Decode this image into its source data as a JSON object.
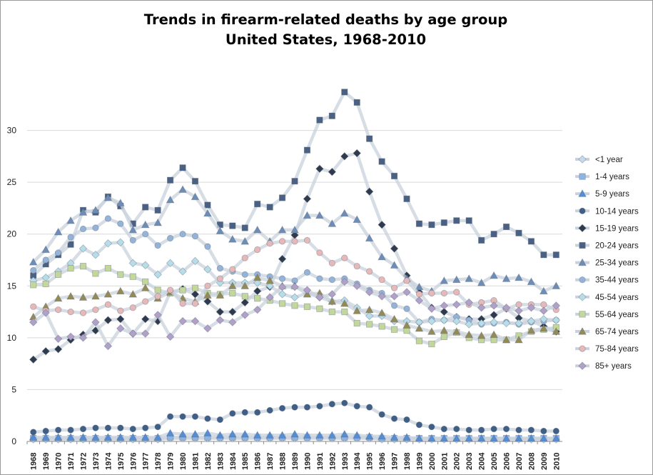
{
  "chart_data": {
    "type": "line",
    "title": "Trends in firearm-related deaths by age group",
    "subtitle": "United States, 1968-2010",
    "xlabel": "",
    "ylabel": "",
    "ylim": [
      0,
      35
    ],
    "y_ticks": [
      "0",
      "5",
      "10",
      "15",
      "20",
      "25",
      "30"
    ],
    "grid": "horizontal",
    "legend_position": "right",
    "x": [
      "1968",
      "1969",
      "1970",
      "1971",
      "1972",
      "1973",
      "1974",
      "1975",
      "1976",
      "1977",
      "1978",
      "1979",
      "1980",
      "1981",
      "1982",
      "1983",
      "1984",
      "1985",
      "1986",
      "1987",
      "1988",
      "1989",
      "1990",
      "1991",
      "1992",
      "1993",
      "1994",
      "1995",
      "1996",
      "1997",
      "1998",
      "1999",
      "2000",
      "2001",
      "2002",
      "2003",
      "2004",
      "2005",
      "2006",
      "2007",
      "2008",
      "2009",
      "2010"
    ],
    "series": [
      {
        "name": "<1 year",
        "color": "#c5d9f1",
        "marker": "diamond",
        "values": [
          0.2,
          0.2,
          0.2,
          0.2,
          0.2,
          0.2,
          0.2,
          0.2,
          0.2,
          0.2,
          0.2,
          0.3,
          0.3,
          0.3,
          0.3,
          0.3,
          0.3,
          0.3,
          0.3,
          0.3,
          0.3,
          0.3,
          0.3,
          0.3,
          0.3,
          0.3,
          0.3,
          0.3,
          0.2,
          0.2,
          0.2,
          0.2,
          0.2,
          0.2,
          0.2,
          0.2,
          0.2,
          0.2,
          0.2,
          0.2,
          0.2,
          0.2,
          0.2
        ]
      },
      {
        "name": "1-4 years",
        "color": "#8db4e2",
        "marker": "square",
        "values": [
          0.3,
          0.3,
          0.3,
          0.3,
          0.3,
          0.3,
          0.3,
          0.3,
          0.3,
          0.3,
          0.3,
          0.4,
          0.4,
          0.4,
          0.4,
          0.4,
          0.4,
          0.4,
          0.4,
          0.4,
          0.4,
          0.4,
          0.4,
          0.4,
          0.4,
          0.4,
          0.4,
          0.4,
          0.3,
          0.3,
          0.3,
          0.3,
          0.3,
          0.3,
          0.3,
          0.3,
          0.3,
          0.3,
          0.3,
          0.3,
          0.3,
          0.3,
          0.3
        ]
      },
      {
        "name": "5-9 years",
        "color": "#538dd5",
        "marker": "triangle",
        "values": [
          0.4,
          0.4,
          0.4,
          0.4,
          0.4,
          0.4,
          0.4,
          0.4,
          0.4,
          0.4,
          0.4,
          0.8,
          0.7,
          0.7,
          0.8,
          0.6,
          0.7,
          0.7,
          0.6,
          0.6,
          0.6,
          0.7,
          0.6,
          0.6,
          0.6,
          0.7,
          0.6,
          0.5,
          0.5,
          0.4,
          0.4,
          0.3,
          0.3,
          0.3,
          0.3,
          0.3,
          0.3,
          0.3,
          0.3,
          0.3,
          0.3,
          0.3,
          0.3
        ]
      },
      {
        "name": "10-14 years",
        "color": "#3f5f86",
        "marker": "circle",
        "values": [
          0.9,
          1.0,
          1.1,
          1.1,
          1.2,
          1.3,
          1.3,
          1.3,
          1.2,
          1.3,
          1.4,
          2.4,
          2.4,
          2.4,
          2.2,
          2.1,
          2.7,
          2.8,
          2.8,
          3.0,
          3.2,
          3.3,
          3.3,
          3.4,
          3.6,
          3.7,
          3.4,
          3.3,
          2.6,
          2.2,
          2.1,
          1.6,
          1.4,
          1.2,
          1.2,
          1.1,
          1.1,
          1.2,
          1.2,
          1.1,
          1.1,
          1.0,
          1.0
        ]
      },
      {
        "name": "15-19 years",
        "color": "#2f3b4d",
        "marker": "diamond",
        "values": [
          7.9,
          8.7,
          8.9,
          9.8,
          10.3,
          10.7,
          11.7,
          11.8,
          10.4,
          11.8,
          11.6,
          14.4,
          14.7,
          14.2,
          13.5,
          12.5,
          12.5,
          13.4,
          14.5,
          14.9,
          17.6,
          19.9,
          23.4,
          26.3,
          26.0,
          27.5,
          27.8,
          24.1,
          20.9,
          18.6,
          16.0,
          14.4,
          12.9,
          12.5,
          12.0,
          11.8,
          11.8,
          12.2,
          12.8,
          11.9,
          11.6,
          11.1,
          10.6
        ]
      },
      {
        "name": "20-24 years",
        "color": "#4a6184",
        "marker": "square",
        "values": [
          16.0,
          17.1,
          18.0,
          19.0,
          22.3,
          22.1,
          23.6,
          22.7,
          21.0,
          22.6,
          22.3,
          25.2,
          26.4,
          25.1,
          22.8,
          20.9,
          20.8,
          20.6,
          22.9,
          22.6,
          23.5,
          25.1,
          28.1,
          31.0,
          31.4,
          33.7,
          32.7,
          29.2,
          27.0,
          25.6,
          23.4,
          21.0,
          20.9,
          21.1,
          21.3,
          21.3,
          19.4,
          20.0,
          20.7,
          20.1,
          19.3,
          18.0,
          18.0
        ]
      },
      {
        "name": "25-34 years",
        "color": "#6e8db6",
        "marker": "triangle",
        "values": [
          17.3,
          18.5,
          20.2,
          21.3,
          22.1,
          22.3,
          23.5,
          23.0,
          20.4,
          20.9,
          21.1,
          23.3,
          24.3,
          23.6,
          22.0,
          20.3,
          19.5,
          19.3,
          20.4,
          19.3,
          20.4,
          20.4,
          21.8,
          21.8,
          21.0,
          22.0,
          21.4,
          19.6,
          17.8,
          17.0,
          15.7,
          14.9,
          14.5,
          15.5,
          15.6,
          15.7,
          15.3,
          16.0,
          15.7,
          15.8,
          15.4,
          14.5,
          15.0
        ]
      },
      {
        "name": "35-44 years",
        "color": "#95b3d7",
        "marker": "circle",
        "values": [
          16.5,
          17.5,
          18.2,
          19.7,
          20.5,
          20.6,
          21.5,
          21.0,
          19.4,
          20.0,
          18.9,
          19.6,
          20.0,
          19.8,
          18.8,
          16.7,
          16.4,
          16.1,
          16.1,
          15.9,
          15.7,
          15.5,
          16.3,
          15.7,
          15.6,
          15.7,
          15.2,
          14.6,
          14.3,
          13.1,
          12.8,
          11.5,
          11.8,
          11.7,
          12.0,
          11.7,
          11.3,
          11.4,
          11.5,
          11.3,
          11.5,
          11.6,
          11.7
        ]
      },
      {
        "name": "45-54 years",
        "color": "#b7dee8",
        "marker": "diamond",
        "values": [
          15.5,
          15.8,
          16.4,
          17.2,
          18.6,
          18.0,
          19.1,
          19.2,
          17.2,
          17.0,
          16.1,
          17.2,
          16.4,
          17.4,
          16.6,
          15.3,
          15.3,
          15.3,
          15.3,
          15.0,
          14.2,
          13.9,
          14.3,
          13.9,
          13.5,
          13.6,
          12.9,
          12.1,
          12.1,
          11.6,
          11.6,
          11.5,
          11.6,
          11.7,
          11.6,
          11.3,
          11.4,
          11.5,
          11.4,
          11.4,
          11.6,
          11.8,
          11.7
        ]
      },
      {
        "name": "55-64 years",
        "color": "#c4d79b",
        "marker": "square",
        "values": [
          15.1,
          15.2,
          16.1,
          16.7,
          16.9,
          16.2,
          16.7,
          16.1,
          15.9,
          15.4,
          14.6,
          14.3,
          14.6,
          14.8,
          14.3,
          14.2,
          14.3,
          14.0,
          13.8,
          13.6,
          13.3,
          13.1,
          13.0,
          12.8,
          12.5,
          12.5,
          11.4,
          11.3,
          11.1,
          10.8,
          10.7,
          9.7,
          9.4,
          10.1,
          10.5,
          10.0,
          9.8,
          9.8,
          9.8,
          10.2,
          10.6,
          10.8,
          11.0
        ]
      },
      {
        "name": "65-74 years",
        "color": "#948a54",
        "marker": "triangle",
        "values": [
          12.0,
          13.0,
          13.8,
          14.0,
          13.9,
          14.0,
          14.2,
          14.5,
          14.2,
          14.8,
          13.8,
          14.4,
          13.8,
          13.5,
          14.1,
          14.1,
          15.0,
          15.0,
          15.8,
          15.5,
          15.0,
          15.0,
          14.2,
          14.3,
          13.5,
          13.3,
          12.6,
          12.7,
          12.4,
          11.8,
          11.2,
          10.9,
          10.6,
          10.7,
          10.6,
          10.3,
          10.2,
          10.3,
          9.8,
          9.8,
          10.7,
          10.9,
          10.6
        ]
      },
      {
        "name": "75-84 years",
        "color": "#e6b9b8",
        "marker": "circle",
        "values": [
          13.0,
          12.6,
          12.7,
          12.5,
          12.4,
          12.7,
          13.2,
          12.6,
          12.9,
          13.5,
          14.0,
          14.6,
          13.3,
          13.3,
          15.0,
          15.7,
          16.6,
          17.7,
          18.5,
          19.1,
          19.3,
          19.3,
          19.4,
          18.2,
          17.2,
          17.7,
          16.9,
          16.4,
          15.6,
          14.8,
          15.5,
          14.2,
          14.3,
          14.3,
          14.4,
          13.2,
          13.4,
          13.6,
          12.8,
          13.2,
          13.2,
          13.2,
          12.7
        ]
      },
      {
        "name": "85+ years",
        "color": "#b1a0c7",
        "marker": "diamond",
        "values": [
          11.5,
          12.4,
          9.9,
          10.1,
          10.0,
          11.5,
          9.2,
          10.9,
          10.4,
          10.4,
          12.2,
          10.1,
          11.6,
          11.6,
          10.9,
          11.7,
          11.5,
          12.2,
          12.7,
          13.9,
          14.9,
          14.9,
          14.6,
          13.9,
          14.2,
          15.4,
          15.0,
          14.4,
          14.0,
          14.0,
          14.4,
          13.6,
          12.8,
          13.1,
          13.2,
          13.4,
          12.9,
          13.1,
          12.9,
          12.6,
          12.9,
          12.6,
          13.1
        ]
      }
    ]
  }
}
